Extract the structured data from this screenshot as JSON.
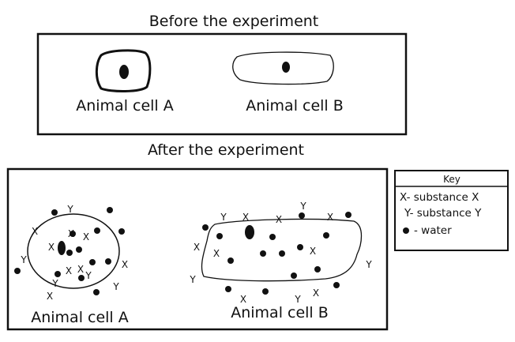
{
  "headings": {
    "before": "Before the experiment",
    "after": "After the experiment"
  },
  "before": {
    "cell_a": {
      "label": "Animal cell A"
    },
    "cell_b": {
      "label": "Animal cell B"
    }
  },
  "after": {
    "cell_a": {
      "label": "Animal cell A"
    },
    "cell_b": {
      "label": "Animal cell B"
    }
  },
  "markers": {
    "x": "X",
    "y": "Y"
  },
  "key": {
    "title": "Key",
    "x_entry": "X- substance X",
    "y_entry": "Y- substance Y",
    "water_entry": "- water"
  }
}
